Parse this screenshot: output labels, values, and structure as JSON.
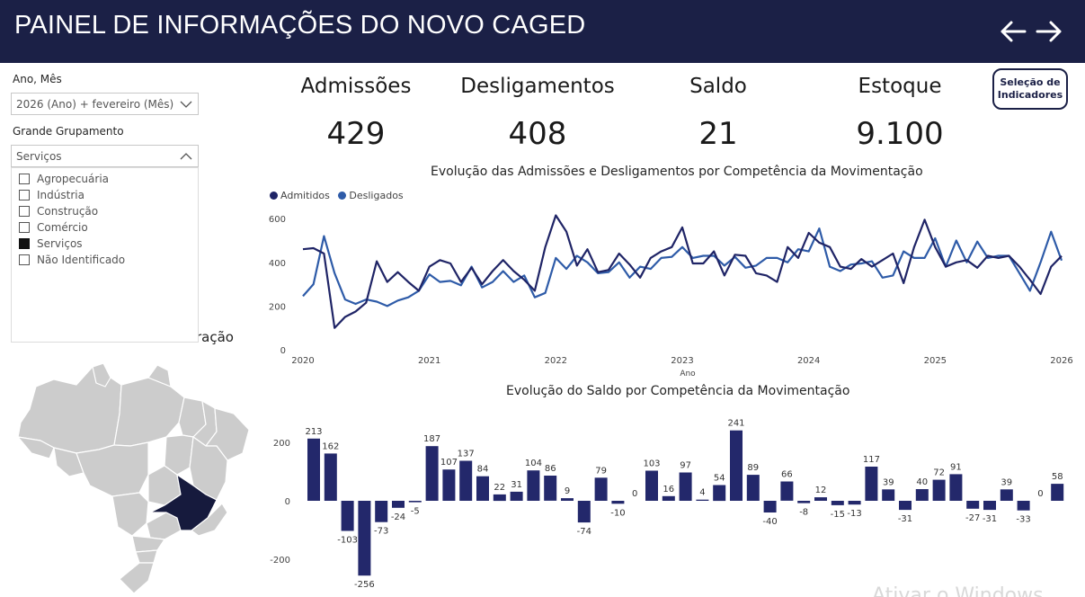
{
  "header": {
    "title": "PAINEL DE INFORMAÇÕES DO NOVO CAGED"
  },
  "filters": {
    "ano_mes": {
      "label": "Ano, Mês",
      "value": "2026 (Ano) + fevereiro (Mês)"
    },
    "grupamento": {
      "label": "Grande Grupamento",
      "value": "Serviços",
      "options": [
        {
          "label": "Agropecuária",
          "checked": false
        },
        {
          "label": "Indústria",
          "checked": false
        },
        {
          "label": "Construção",
          "checked": false
        },
        {
          "label": "Comércio",
          "checked": false
        },
        {
          "label": "Serviços",
          "checked": true
        },
        {
          "label": "Não Identificado",
          "checked": false
        }
      ]
    }
  },
  "map": {
    "title_visible": "ração"
  },
  "kpis": [
    {
      "title": "Admissões",
      "value": "429"
    },
    {
      "title": "Desligamentos",
      "value": "408"
    },
    {
      "title": "Saldo",
      "value": "21"
    },
    {
      "title": "Estoque",
      "value": "9.100"
    }
  ],
  "selection_button": {
    "line1": "Seleção de",
    "line2": "Indicadores"
  },
  "colors": {
    "header": "#1b2046",
    "admitidos": "#1f2466",
    "desligados": "#2e5ba8",
    "bar": "#23286b",
    "map_highlight": "#161a3d",
    "map_fill": "#cccccc"
  },
  "chart_data": [
    {
      "type": "line",
      "title": "Evolução das Admissões e Desligamentos por Competência da Movimentação",
      "xlabel": "Ano",
      "x_ticks": [
        "2020",
        "2021",
        "2022",
        "2023",
        "2024",
        "2025",
        "2026"
      ],
      "y_ticks": [
        0,
        200,
        400,
        600
      ],
      "ylim": [
        0,
        650
      ],
      "x_start": "2020-01",
      "series": [
        {
          "name": "Admitidos",
          "values": [
            460,
            465,
            440,
            100,
            150,
            175,
            215,
            405,
            310,
            355,
            310,
            270,
            380,
            410,
            395,
            310,
            375,
            300,
            360,
            410,
            360,
            320,
            270,
            470,
            615,
            540,
            385,
            460,
            355,
            365,
            440,
            390,
            330,
            420,
            450,
            470,
            560,
            395,
            395,
            450,
            340,
            435,
            430,
            350,
            340,
            310,
            470,
            420,
            535,
            490,
            470,
            380,
            370,
            415,
            380,
            410,
            440,
            305,
            470,
            595,
            470,
            380,
            400,
            410,
            375,
            430,
            420,
            430,
            380,
            320,
            255,
            380,
            429
          ]
        },
        {
          "name": "Desligados",
          "values": [
            245,
            300,
            520,
            350,
            230,
            210,
            230,
            220,
            200,
            225,
            240,
            270,
            345,
            310,
            315,
            295,
            380,
            285,
            310,
            360,
            310,
            340,
            240,
            260,
            420,
            370,
            430,
            400,
            350,
            355,
            400,
            330,
            380,
            370,
            420,
            425,
            470,
            420,
            430,
            430,
            385,
            425,
            375,
            385,
            420,
            420,
            400,
            460,
            450,
            555,
            380,
            360,
            390,
            395,
            405,
            330,
            340,
            450,
            420,
            420,
            510,
            380,
            500,
            400,
            495,
            420,
            430,
            430,
            350,
            270,
            400,
            540,
            408
          ]
        }
      ]
    },
    {
      "type": "bar",
      "title": "Evolução do Saldo por Competência da Movimentação",
      "y_ticks": [
        -200,
        0,
        200
      ],
      "ylim": [
        -270,
        250
      ],
      "values": [
        213,
        162,
        -103,
        -256,
        -73,
        -24,
        -5,
        187,
        107,
        137,
        84,
        22,
        31,
        104,
        86,
        9,
        -74,
        79,
        -10,
        0,
        103,
        16,
        97,
        4,
        54,
        241,
        89,
        -40,
        66,
        -8,
        12,
        -15,
        -13,
        117,
        39,
        -31,
        40,
        72,
        91,
        -27,
        -31,
        39,
        -33,
        0,
        58
      ]
    }
  ],
  "watermark": "Ativar o Windows"
}
